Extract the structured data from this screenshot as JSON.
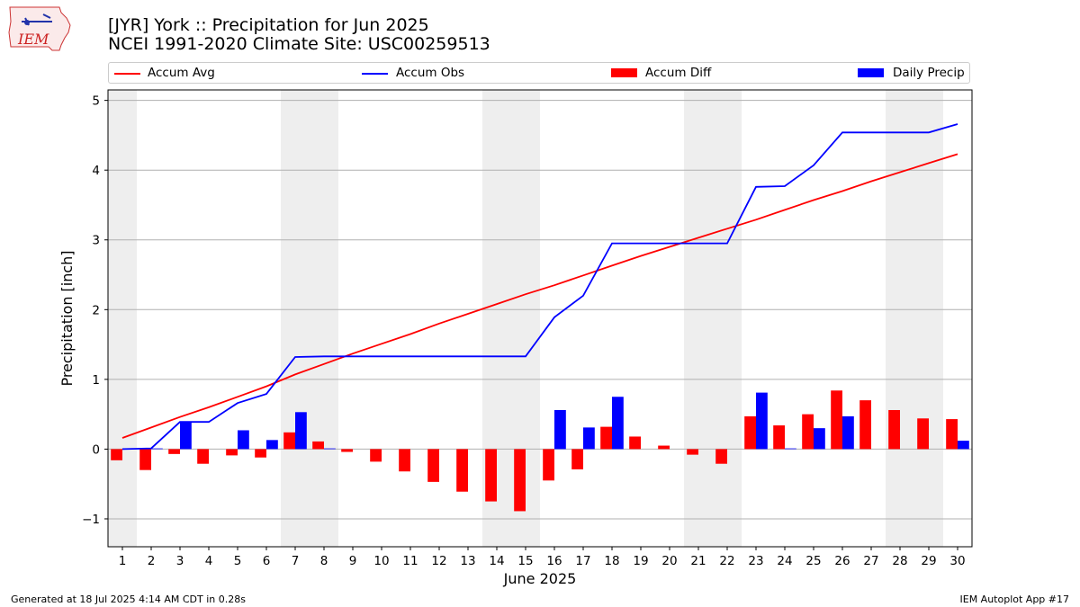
{
  "header": {
    "title_line1": "[JYR] York :: Precipitation for Jun 2025",
    "title_line2": "NCEI 1991-2020 Climate Site: USC00259513"
  },
  "logo": {
    "text": "IEM",
    "icon": "iem-iowa-map-logo"
  },
  "footer": {
    "left": "Generated at 18 Jul 2025 4:14 AM CDT in 0.28s",
    "right": "IEM Autoplot App #17"
  },
  "colors": {
    "accum_avg": "#ff0000",
    "accum_obs": "#0000ff",
    "accum_diff": "#ff0000",
    "daily_precip": "#0000ff",
    "weekend_shade": "#eeeeee",
    "grid": "#b0b0b0"
  },
  "chart_data": {
    "type": "bar",
    "xlabel": "June 2025",
    "ylabel": "Precipitation [inch]",
    "ylim": [
      -1.4,
      5.15
    ],
    "yticks": [
      -1,
      0,
      1,
      2,
      3,
      4,
      5
    ],
    "ytick_labels": [
      "−1",
      "0",
      "1",
      "2",
      "3",
      "4",
      "5"
    ],
    "grid": "horizontal",
    "legend_position": "top",
    "x": [
      "1",
      "2",
      "3",
      "4",
      "5",
      "6",
      "7",
      "8",
      "9",
      "10",
      "11",
      "12",
      "13",
      "14",
      "15",
      "16",
      "17",
      "18",
      "19",
      "20",
      "21",
      "22",
      "23",
      "24",
      "25",
      "26",
      "27",
      "28",
      "29",
      "30"
    ],
    "weekend_days": [
      1,
      7,
      8,
      14,
      15,
      21,
      22,
      28,
      29
    ],
    "series": [
      {
        "name": "Accum Avg",
        "kind": "line",
        "values": [
          0.16,
          0.31,
          0.46,
          0.6,
          0.75,
          0.9,
          1.07,
          1.22,
          1.37,
          1.51,
          1.65,
          1.8,
          1.94,
          2.08,
          2.22,
          2.35,
          2.49,
          2.63,
          2.77,
          2.9,
          3.03,
          3.16,
          3.29,
          3.43,
          3.57,
          3.7,
          3.84,
          3.97,
          4.1,
          4.23
        ]
      },
      {
        "name": "Accum Obs",
        "kind": "line",
        "values": [
          0.0,
          0.01,
          0.39,
          0.39,
          0.66,
          0.79,
          1.32,
          1.33,
          1.33,
          1.33,
          1.33,
          1.33,
          1.33,
          1.33,
          1.33,
          1.89,
          2.2,
          2.95,
          2.95,
          2.95,
          2.95,
          2.95,
          3.76,
          3.77,
          4.07,
          4.54,
          4.54,
          4.54,
          4.54,
          4.66
        ]
      },
      {
        "name": "Accum Diff",
        "kind": "bar",
        "values": [
          -0.16,
          -0.3,
          -0.07,
          -0.21,
          -0.09,
          -0.12,
          0.24,
          0.11,
          -0.04,
          -0.18,
          -0.32,
          -0.47,
          -0.61,
          -0.75,
          -0.89,
          -0.45,
          -0.29,
          0.32,
          0.18,
          0.05,
          -0.08,
          -0.21,
          0.47,
          0.34,
          0.5,
          0.84,
          0.7,
          0.56,
          0.44,
          0.43
        ]
      },
      {
        "name": "Daily Precip",
        "kind": "bar",
        "values": [
          0.0,
          0.01,
          0.39,
          0.0,
          0.27,
          0.13,
          0.53,
          0.01,
          0.0,
          0.0,
          0.0,
          0.0,
          0.0,
          0.0,
          0.0,
          0.56,
          0.31,
          0.75,
          0.0,
          0.0,
          0.0,
          0.0,
          0.81,
          0.01,
          0.3,
          0.47,
          0.0,
          0.0,
          0.0,
          0.12
        ]
      }
    ]
  }
}
